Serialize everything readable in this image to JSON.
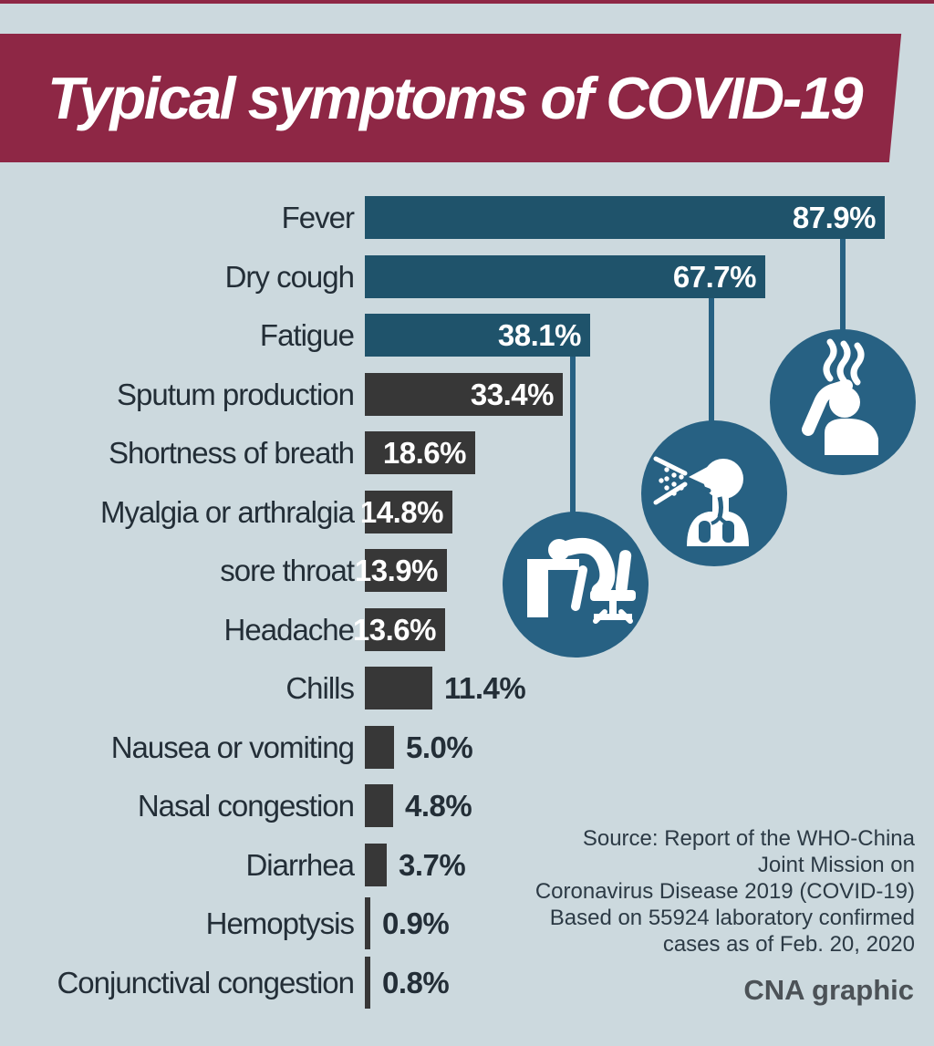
{
  "header": {
    "title": "Typical symptoms of COVID-19"
  },
  "chart_data": {
    "type": "bar",
    "orientation": "horizontal",
    "title": "Typical symptoms of COVID-19",
    "xlabel": "",
    "ylabel": "",
    "unit": "%",
    "xlim": [
      0,
      100
    ],
    "grid": false,
    "legend": "none",
    "categories": [
      "Fever",
      "Dry cough",
      "Fatigue",
      "Sputum production",
      "Shortness of breath",
      "Myalgia or arthralgia",
      "sore throat",
      "Headache",
      "Chills",
      "Nausea or vomiting",
      "Nasal congestion",
      "Diarrhea",
      "Hemoptysis",
      "Conjunctival congestion"
    ],
    "values": [
      87.9,
      67.7,
      38.1,
      33.4,
      18.6,
      14.8,
      13.9,
      13.6,
      11.4,
      5.0,
      4.8,
      3.7,
      0.9,
      0.8
    ],
    "value_labels": [
      "87.9%",
      "67.7%",
      "38.1%",
      "33.4%",
      "18.6%",
      "14.8%",
      "13.9%",
      "13.6%",
      "11.4%",
      "5.0%",
      "4.8%",
      "3.7%",
      "0.9%",
      "0.8%"
    ],
    "highlighted_categories": [
      "Fever",
      "Dry cough",
      "Fatigue"
    ]
  },
  "icons": [
    {
      "name": "fever-icon",
      "represents": "Fever"
    },
    {
      "name": "cough-icon",
      "represents": "Dry cough"
    },
    {
      "name": "fatigue-icon",
      "represents": "Fatigue"
    }
  ],
  "source": {
    "lines": [
      "Source: Report of the WHO-China",
      "Joint Mission on",
      "Coronavirus Disease 2019 (COVID-19)",
      "Based on 55924 laboratory confirmed",
      "cases as of Feb. 20, 2020"
    ]
  },
  "footer": {
    "credit": "CNA graphic"
  },
  "colors": {
    "background": "#ccd9de",
    "banner": "#8e2745",
    "bar_teal": "#1f536b",
    "bar_dark": "#373737",
    "icon_circle": "#276183",
    "label_text": "#232e37",
    "value_text_light": "#ffffff",
    "source_text": "#2c3a45",
    "credit_text": "#4c5257"
  }
}
